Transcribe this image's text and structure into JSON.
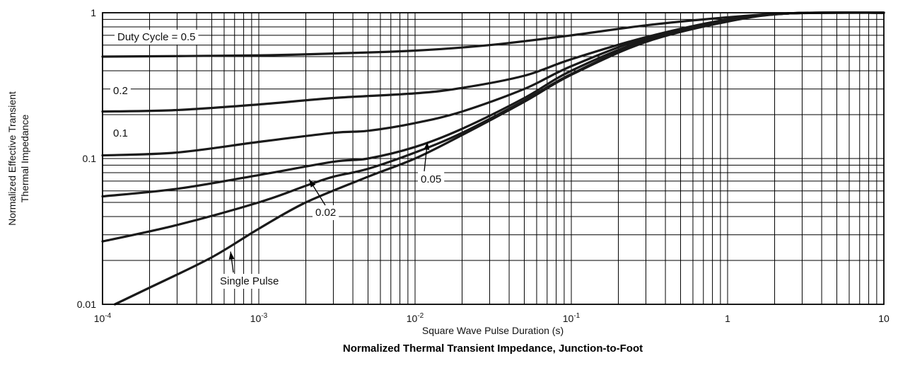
{
  "chart_data": {
    "type": "line",
    "title": "Normalized Thermal Transient Impedance, Junction-to-Foot",
    "xlabel": "Square Wave Pulse Duration (s)",
    "ylabel_lines": [
      "Normalized Effective Transient",
      "Thermal Impedance"
    ],
    "x_scale": "log",
    "y_scale": "log",
    "xlim": [
      0.0001,
      10
    ],
    "ylim": [
      0.01,
      1
    ],
    "grid": true,
    "x_ticks": [
      {
        "value": 0.0001,
        "base": "10",
        "exp": "-4"
      },
      {
        "value": 0.001,
        "base": "10",
        "exp": "-3"
      },
      {
        "value": 0.01,
        "base": "10",
        "exp": "-2"
      },
      {
        "value": 0.1,
        "base": "10",
        "exp": "-1"
      },
      {
        "value": 1,
        "base": "1",
        "exp": ""
      },
      {
        "value": 10,
        "base": "10",
        "exp": ""
      }
    ],
    "y_ticks": [
      {
        "value": 0.01,
        "label": "0.01"
      },
      {
        "value": 0.1,
        "label": "0.1"
      },
      {
        "value": 1,
        "label": "1"
      }
    ],
    "series": [
      {
        "name": "Duty Cycle = 0.5",
        "x": [
          0.0001,
          0.001,
          0.003,
          0.01,
          0.03,
          0.1,
          0.3,
          1,
          2.5,
          10
        ],
        "y": [
          0.5,
          0.51,
          0.525,
          0.55,
          0.6,
          0.7,
          0.82,
          0.93,
          0.99,
          1
        ]
      },
      {
        "name": "0.2",
        "x": [
          0.0001,
          0.0003,
          0.001,
          0.003,
          0.01,
          0.02,
          0.05,
          0.1,
          0.3,
          1,
          2.5,
          10
        ],
        "y": [
          0.21,
          0.215,
          0.235,
          0.26,
          0.28,
          0.305,
          0.37,
          0.48,
          0.68,
          0.9,
          0.99,
          1
        ]
      },
      {
        "name": "0.1",
        "x": [
          0.0001,
          0.0003,
          0.001,
          0.003,
          0.005,
          0.01,
          0.02,
          0.05,
          0.1,
          0.3,
          1,
          2.5,
          10
        ],
        "y": [
          0.105,
          0.11,
          0.13,
          0.15,
          0.155,
          0.175,
          0.21,
          0.3,
          0.43,
          0.67,
          0.89,
          0.99,
          1
        ]
      },
      {
        "name": "0.05",
        "x": [
          0.0001,
          0.0003,
          0.001,
          0.003,
          0.005,
          0.01,
          0.02,
          0.05,
          0.1,
          0.3,
          1,
          2.5,
          10
        ],
        "y": [
          0.055,
          0.062,
          0.077,
          0.095,
          0.1,
          0.12,
          0.16,
          0.26,
          0.4,
          0.65,
          0.88,
          0.99,
          1
        ]
      },
      {
        "name": "0.02",
        "x": [
          0.0001,
          0.0003,
          0.001,
          0.002,
          0.003,
          0.005,
          0.01,
          0.02,
          0.05,
          0.1,
          0.3,
          1,
          2.5,
          10
        ],
        "y": [
          0.027,
          0.035,
          0.05,
          0.065,
          0.075,
          0.085,
          0.11,
          0.15,
          0.25,
          0.38,
          0.64,
          0.88,
          0.99,
          1
        ]
      },
      {
        "name": "Single Pulse",
        "x": [
          0.00012,
          0.0002,
          0.0005,
          0.001,
          0.002,
          0.005,
          0.01,
          0.02,
          0.05,
          0.1,
          0.3,
          1,
          2.5,
          10
        ],
        "y": [
          0.01,
          0.013,
          0.021,
          0.033,
          0.05,
          0.075,
          0.1,
          0.145,
          0.245,
          0.375,
          0.63,
          0.87,
          0.99,
          1
        ]
      }
    ],
    "annotations": [
      {
        "text": "Duty Cycle = 0.5",
        "series": 0
      },
      {
        "text": "0.2",
        "series": 1
      },
      {
        "text": "0.1",
        "series": 2
      },
      {
        "text": "0.05",
        "series": 3,
        "arrow_to": {
          "x": 0.012,
          "y": 0.13
        }
      },
      {
        "text": "0.02",
        "series": 4,
        "arrow_to": {
          "x": 0.0021,
          "y": 0.072
        }
      },
      {
        "text": "Single Pulse",
        "series": 5,
        "arrow_to": {
          "x": 0.00066,
          "y": 0.023
        }
      }
    ]
  }
}
